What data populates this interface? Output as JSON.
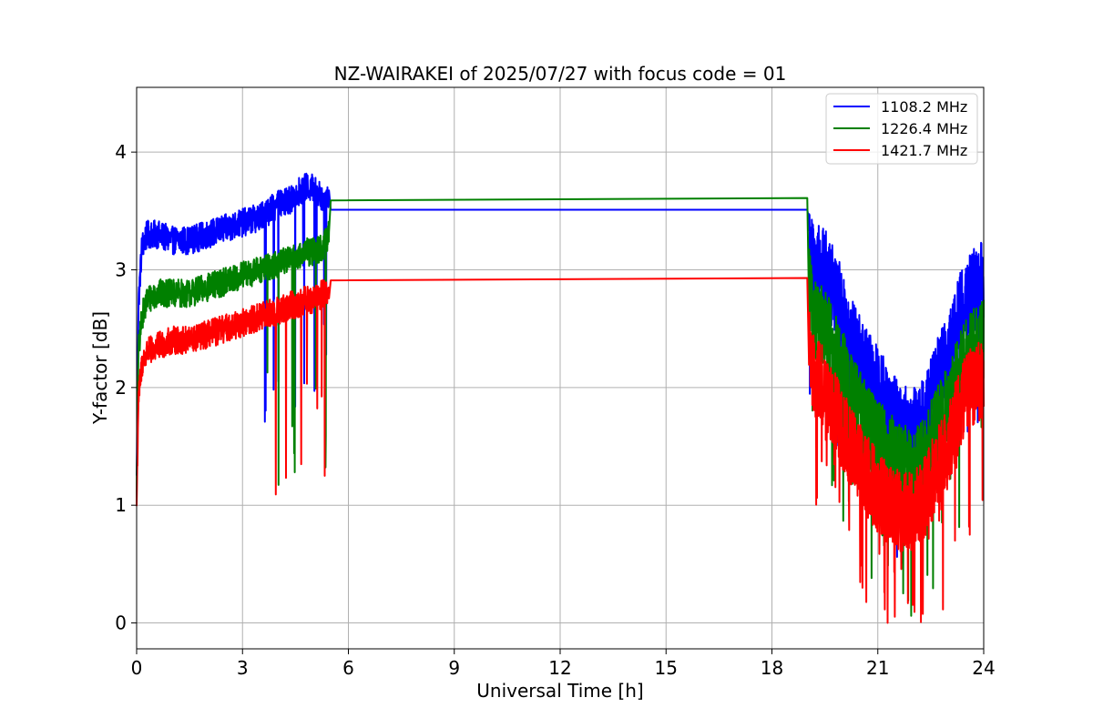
{
  "chart_data": {
    "type": "line",
    "title": "NZ-WAIRAKEI of 2025/07/27 with focus code = 01",
    "xlabel": "Universal Time [h]",
    "ylabel": "Y-factor [dB]",
    "xlim": [
      0,
      24
    ],
    "ylim": [
      -0.22,
      4.55
    ],
    "xticks": [
      0,
      3,
      6,
      9,
      12,
      15,
      18,
      21,
      24
    ],
    "yticks": [
      0,
      1,
      2,
      3,
      4
    ],
    "grid": true,
    "legend_position": "top-right",
    "series": [
      {
        "name": "1108.2 MHz",
        "color": "#0000ff",
        "x": [
          0.0,
          0.05,
          0.15,
          0.3,
          0.6,
          1.0,
          1.5,
          2.0,
          2.5,
          3.0,
          3.5,
          4.0,
          4.4,
          4.5,
          4.8,
          5.0,
          5.3,
          5.45,
          5.5,
          19.0,
          19.05,
          19.2,
          19.5,
          19.8,
          20.0,
          20.3,
          20.6,
          21.0,
          21.3,
          21.6,
          22.0,
          22.3,
          22.6,
          23.0,
          23.3,
          23.6,
          24.0
        ],
        "y": [
          1.2,
          2.7,
          3.2,
          3.3,
          3.3,
          3.25,
          3.25,
          3.3,
          3.35,
          3.4,
          3.45,
          3.55,
          3.6,
          3.65,
          3.7,
          3.7,
          3.6,
          3.65,
          3.51,
          3.51,
          3.2,
          3.05,
          3.0,
          2.8,
          2.65,
          2.4,
          2.2,
          2.0,
          1.85,
          1.7,
          1.65,
          1.75,
          2.0,
          2.3,
          2.6,
          2.8,
          2.9
        ]
      },
      {
        "name": "1226.4 MHz",
        "color": "#008000",
        "x": [
          0.0,
          0.05,
          0.15,
          0.3,
          0.6,
          1.0,
          1.5,
          2.0,
          2.5,
          3.0,
          3.5,
          4.0,
          4.4,
          4.5,
          4.8,
          5.0,
          5.3,
          5.45,
          5.5,
          19.0,
          19.05,
          19.2,
          19.5,
          19.8,
          20.0,
          20.3,
          20.6,
          21.0,
          21.3,
          21.6,
          22.0,
          22.3,
          22.6,
          23.0,
          23.3,
          23.6,
          24.0
        ],
        "y": [
          1.1,
          2.3,
          2.6,
          2.75,
          2.8,
          2.8,
          2.8,
          2.85,
          2.9,
          2.95,
          3.0,
          3.05,
          3.1,
          3.1,
          3.15,
          3.15,
          3.2,
          3.3,
          3.59,
          3.61,
          2.9,
          2.6,
          2.5,
          2.3,
          2.15,
          1.95,
          1.75,
          1.55,
          1.45,
          1.35,
          1.3,
          1.4,
          1.6,
          1.85,
          2.1,
          2.3,
          2.4
        ]
      },
      {
        "name": "1421.7 MHz",
        "color": "#ff0000",
        "x": [
          0.0,
          0.05,
          0.15,
          0.3,
          0.6,
          1.0,
          1.5,
          2.0,
          2.5,
          3.0,
          3.5,
          4.0,
          4.4,
          4.5,
          4.8,
          5.0,
          5.3,
          5.45,
          5.5,
          19.0,
          19.05,
          19.2,
          19.5,
          19.8,
          20.0,
          20.3,
          20.6,
          21.0,
          21.3,
          21.6,
          22.0,
          22.3,
          22.6,
          23.0,
          23.3,
          23.6,
          24.0
        ],
        "y": [
          1.0,
          1.9,
          2.2,
          2.3,
          2.35,
          2.4,
          2.4,
          2.45,
          2.5,
          2.55,
          2.6,
          2.65,
          2.7,
          2.7,
          2.75,
          2.75,
          2.8,
          2.85,
          2.91,
          2.93,
          2.3,
          2.1,
          2.0,
          1.8,
          1.65,
          1.45,
          1.3,
          1.1,
          1.0,
          0.95,
          0.95,
          1.05,
          1.25,
          1.5,
          1.8,
          2.0,
          2.1
        ]
      }
    ]
  }
}
